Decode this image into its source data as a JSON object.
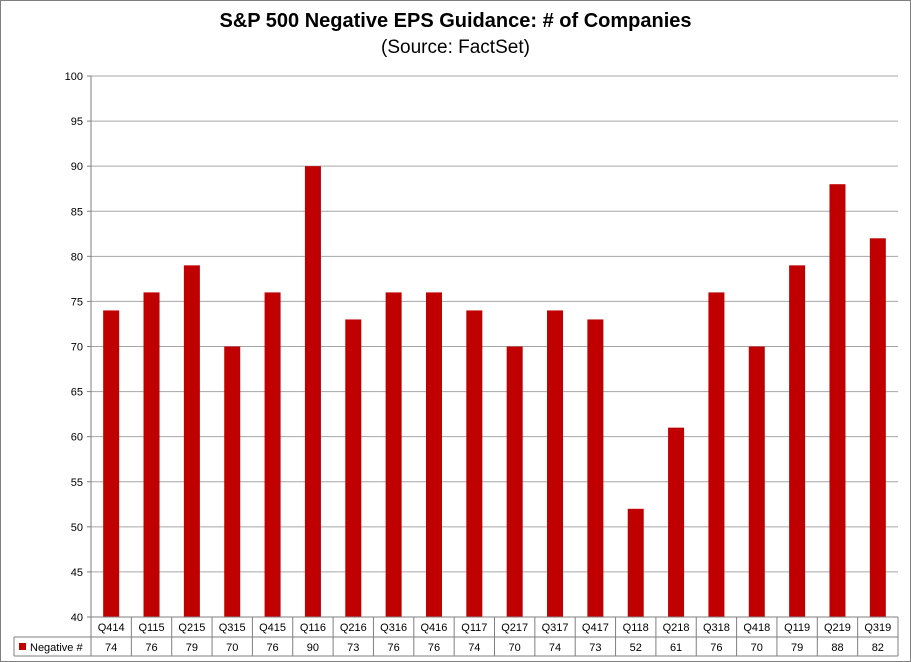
{
  "chart_data": {
    "type": "bar",
    "title": "S&P 500 Negative EPS Guidance: # of Companies",
    "subtitle": "(Source: FactSet)",
    "categories": [
      "Q414",
      "Q115",
      "Q215",
      "Q315",
      "Q415",
      "Q116",
      "Q216",
      "Q316",
      "Q416",
      "Q117",
      "Q217",
      "Q317",
      "Q417",
      "Q118",
      "Q218",
      "Q318",
      "Q418",
      "Q119",
      "Q219",
      "Q319"
    ],
    "series": [
      {
        "name": "Negative #",
        "values": [
          74,
          76,
          79,
          70,
          76,
          90,
          73,
          76,
          76,
          74,
          70,
          74,
          73,
          52,
          61,
          76,
          70,
          79,
          88,
          82
        ],
        "color": "#c00000"
      }
    ],
    "ylim": [
      40,
      100
    ],
    "yticks": [
      40,
      45,
      50,
      55,
      60,
      65,
      70,
      75,
      80,
      85,
      90,
      95,
      100
    ],
    "grid": true,
    "legend": "data-table"
  }
}
